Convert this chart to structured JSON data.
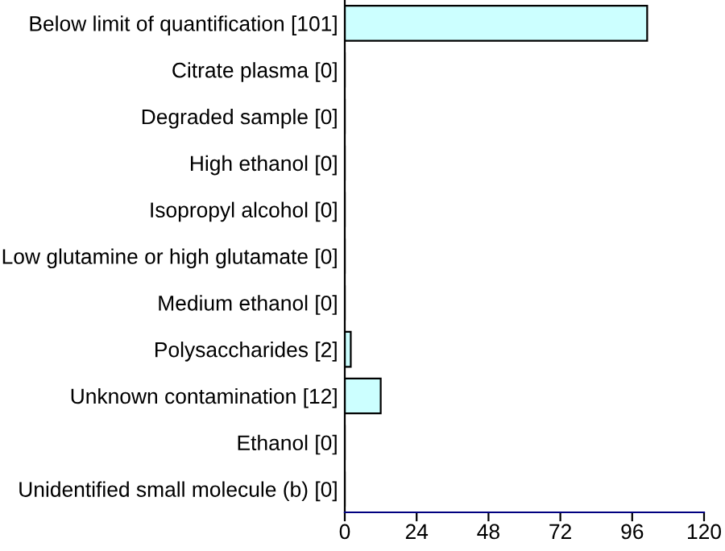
{
  "chart_data": {
    "type": "bar",
    "orientation": "horizontal",
    "categories": [
      "Below limit of quantification [101]",
      "Citrate plasma [0]",
      "Degraded sample [0]",
      "High ethanol [0]",
      "Isopropyl alcohol [0]",
      "Low glutamine or high glutamate [0]",
      "Medium ethanol [0]",
      "Polysaccharides [2]",
      "Unknown contamination [12]",
      "Ethanol [0]",
      "Unidentified small molecule (b) [0]"
    ],
    "values": [
      101,
      0,
      0,
      0,
      0,
      0,
      0,
      2,
      12,
      0,
      0
    ],
    "color": "#ccffff",
    "xlim": [
      0,
      120
    ],
    "xticks": [
      0,
      24,
      48,
      72,
      96,
      120
    ],
    "grid": false,
    "legend": false
  }
}
